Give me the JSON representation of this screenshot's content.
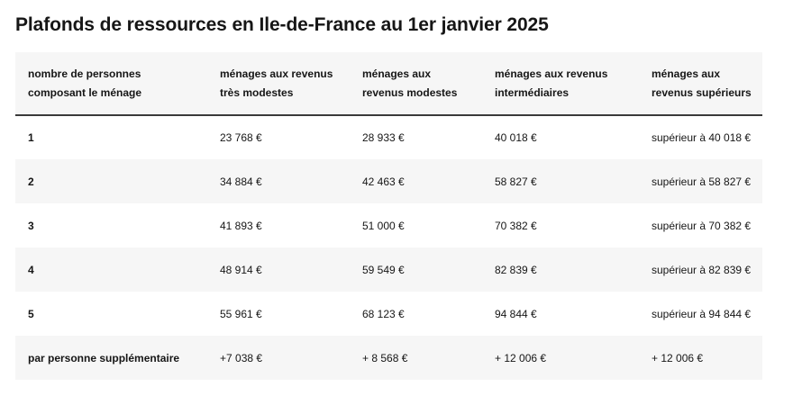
{
  "title": "Plafonds de ressources en Ile-de-France au 1er janvier 2025",
  "table": {
    "headers": [
      "nombre de personnes composant le ménage",
      "ménages aux revenus très modestes",
      "ménages aux revenus modestes",
      "ménages aux revenus intermédiaires",
      "ménages aux revenus supérieurs"
    ],
    "rows": [
      [
        "1",
        "23 768 €",
        "28 933 €",
        "40 018 €",
        "supérieur à 40 018 €"
      ],
      [
        "2",
        "34 884 €",
        "42 463 €",
        "58 827 €",
        "supérieur à 58 827 €"
      ],
      [
        "3",
        "41 893 €",
        "51 000 €",
        "70 382 €",
        "supérieur à 70 382 €"
      ],
      [
        "4",
        "48 914 €",
        "59 549 €",
        "82 839 €",
        "supérieur à 82 839 €"
      ],
      [
        "5",
        "55 961 €",
        "68 123 €",
        "94 844 €",
        "supérieur à 94 844 €"
      ],
      [
        "par personne supplémentaire",
        "+7 038 €",
        "+ 8 568 €",
        "+ 12 006 €",
        "+ 12 006 €"
      ]
    ]
  },
  "colors": {
    "text": "#161616",
    "row_alt": "#f6f6f6",
    "header_rule": "#3a3a3a"
  }
}
